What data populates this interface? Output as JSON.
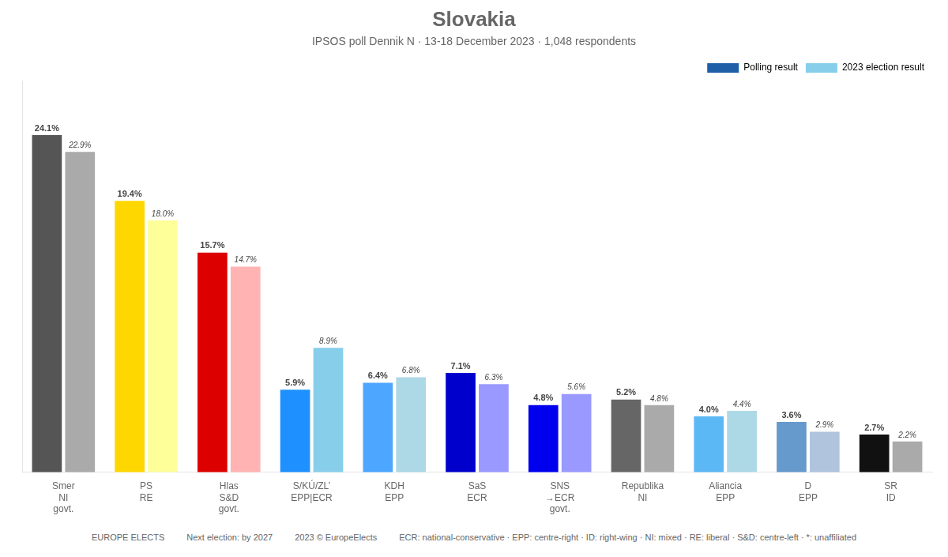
{
  "chart_data": {
    "type": "bar",
    "title": "Slovakia",
    "subtitle": "IPSOS poll Dennik N · 13-18 December 2023 · 1,048 respondents",
    "categories": [
      "Smer",
      "PS",
      "Hlas",
      "S/KÚ/ZL’",
      "KDH",
      "SaS",
      "SNS",
      "Republika",
      "Aliancia",
      "D",
      "SR"
    ],
    "category_notes": [
      "NI",
      "RE",
      "S&D",
      "EPP|ECR",
      "EPP",
      "ECR",
      "→ECR",
      "NI",
      "EPP",
      "EPP",
      "ID"
    ],
    "govt_notes": [
      "govt.",
      null,
      "govt.",
      null,
      null,
      null,
      "govt.",
      null,
      null,
      null,
      null
    ],
    "series": [
      {
        "name": "Polling result",
        "color": "#1E5FA8",
        "colors": [
          "#555555",
          "#FFD700",
          "#DD0000",
          "#1E90FF",
          "#4DA6FF",
          "#0000CC",
          "#0000EE",
          "#666666",
          "#5BB8F5",
          "#6699CC",
          "#111111"
        ],
        "values": [
          24.1,
          19.4,
          15.7,
          5.9,
          6.4,
          7.1,
          4.8,
          5.2,
          4.0,
          3.6,
          2.7
        ],
        "value_labels": [
          "24.1%",
          "19.4%",
          "15.7%",
          "5.9%",
          "6.4%",
          "7.1%",
          "4.8%",
          "5.2%",
          "4.0%",
          "3.6%",
          "2.7%"
        ]
      },
      {
        "name": "2023 election result",
        "color": "#87CEEB",
        "colors": [
          "#AAAAAA",
          "#FFFF99",
          "#FFB3B3",
          "#87CEEB",
          "#ADD8E6",
          "#9999FF",
          "#9999FF",
          "#AAAAAA",
          "#ADD8E6",
          "#B0C4DE",
          "#AAAAAA"
        ],
        "values": [
          22.9,
          18.0,
          14.7,
          8.9,
          6.8,
          6.3,
          5.6,
          4.8,
          4.4,
          2.9,
          2.2
        ],
        "value_labels": [
          "22.9%",
          "18.0%",
          "14.7%",
          "8.9%",
          "6.8%",
          "6.3%",
          "5.6%",
          "4.8%",
          "4.4%",
          "2.9%",
          "2.2%"
        ]
      }
    ],
    "ylim": [
      0,
      28
    ],
    "tick_labels": "x",
    "grid": false,
    "legend": "upper right",
    "data_labels": true,
    "annotations": [
      "EUROPE ELECTS",
      "Next election: by 2027",
      "2023 © EuropeElects",
      "ECR: national-conservative · EPP: centre-right · ID: right-wing · NI: mixed · RE: liberal · S&D: centre-left · *: unaffiliated"
    ]
  }
}
